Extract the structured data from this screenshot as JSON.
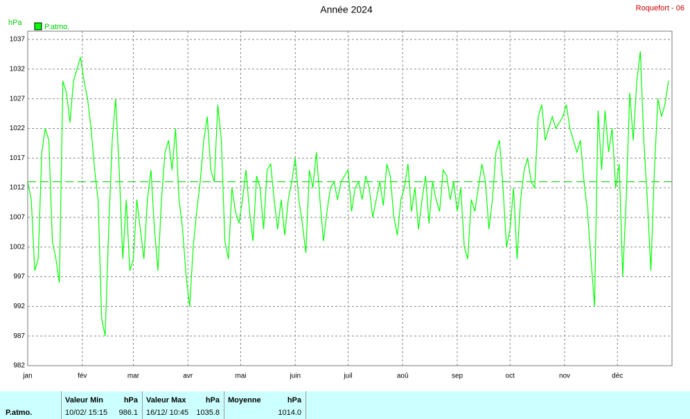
{
  "chart_data": {
    "type": "line",
    "title": "Année 2024",
    "station": "Roquefort - 06",
    "ylabel": "hPa",
    "xlim": [
      0,
      366
    ],
    "ylim": [
      982,
      1038.4
    ],
    "yticks": [
      982,
      987,
      992,
      997,
      1002,
      1007,
      1012,
      1017,
      1022,
      1027,
      1032,
      1037
    ],
    "xticks": [
      {
        "value": 0,
        "label": "jan"
      },
      {
        "value": 31,
        "label": "fév"
      },
      {
        "value": 60,
        "label": "mar"
      },
      {
        "value": 91,
        "label": "avr"
      },
      {
        "value": 121,
        "label": "mai"
      },
      {
        "value": 152,
        "label": "juin"
      },
      {
        "value": 182,
        "label": "juil"
      },
      {
        "value": 213,
        "label": "aoû"
      },
      {
        "value": 244,
        "label": "sep"
      },
      {
        "value": 274,
        "label": "oct"
      },
      {
        "value": 305,
        "label": "nov"
      },
      {
        "value": 335,
        "label": "déc"
      }
    ],
    "grid": true,
    "mean_line": 1013,
    "series": [
      {
        "name": "P.atmo.",
        "color": "#00ff00",
        "x": [
          0,
          2,
          4,
          6,
          8,
          10,
          12,
          14,
          16,
          18,
          20,
          22,
          24,
          26,
          28,
          30,
          32,
          34,
          36,
          38,
          40,
          42,
          44,
          46,
          48,
          50,
          52,
          54,
          56,
          58,
          60,
          62,
          64,
          66,
          68,
          70,
          72,
          74,
          76,
          78,
          80,
          82,
          84,
          86,
          88,
          90,
          92,
          94,
          96,
          98,
          100,
          102,
          104,
          106,
          108,
          110,
          112,
          114,
          116,
          118,
          120,
          122,
          124,
          126,
          128,
          130,
          132,
          134,
          136,
          138,
          140,
          142,
          144,
          146,
          148,
          150,
          152,
          154,
          156,
          158,
          160,
          162,
          164,
          166,
          168,
          170,
          172,
          174,
          176,
          178,
          180,
          182,
          184,
          186,
          188,
          190,
          192,
          194,
          196,
          198,
          200,
          202,
          204,
          206,
          208,
          210,
          212,
          214,
          216,
          218,
          220,
          222,
          224,
          226,
          228,
          230,
          232,
          234,
          236,
          238,
          240,
          242,
          244,
          246,
          248,
          250,
          252,
          254,
          256,
          258,
          260,
          262,
          264,
          266,
          268,
          270,
          272,
          274,
          276,
          278,
          280,
          282,
          284,
          286,
          288,
          290,
          292,
          294,
          296,
          298,
          300,
          302,
          304,
          306,
          308,
          310,
          312,
          314,
          316,
          318,
          320,
          322,
          324,
          326,
          328,
          330,
          332,
          334,
          336,
          338,
          340,
          342,
          344,
          346,
          348,
          350,
          352,
          354,
          356,
          358,
          360,
          362,
          364
        ],
        "values": [
          1013,
          1010,
          998,
          1000,
          1018,
          1022,
          1020,
          1003,
          1000,
          996,
          1030,
          1028,
          1023,
          1030,
          1032,
          1034,
          1030,
          1027,
          1022,
          1015,
          1010,
          990,
          987,
          1005,
          1020,
          1027,
          1015,
          1000,
          1010,
          998,
          1000,
          1010,
          1005,
          1000,
          1010,
          1015,
          1005,
          998,
          1010,
          1018,
          1020,
          1015,
          1022,
          1010,
          1005,
          997,
          992,
          1002,
          1008,
          1013,
          1020,
          1024,
          1015,
          1013,
          1026,
          1020,
          1003,
          1000,
          1012,
          1008,
          1006,
          1010,
          1015,
          1008,
          1003,
          1014,
          1012,
          1005,
          1015,
          1016,
          1010,
          1005,
          1010,
          1004,
          1010,
          1013,
          1017,
          1010,
          1006,
          1001,
          1015,
          1012,
          1018,
          1010,
          1003,
          1008,
          1012,
          1013,
          1010,
          1013,
          1014,
          1015,
          1008,
          1012,
          1013,
          1010,
          1014,
          1012,
          1007,
          1010,
          1013,
          1009,
          1016,
          1014,
          1007,
          1004,
          1010,
          1012,
          1016,
          1008,
          1012,
          1005,
          1010,
          1014,
          1006,
          1013,
          1010,
          1008,
          1015,
          1014,
          1010,
          1013,
          1008,
          1012,
          1002,
          1000,
          1010,
          1008,
          1012,
          1016,
          1013,
          1005,
          1010,
          1018,
          1020,
          1012,
          1002,
          1005,
          1012,
          1000,
          1010,
          1015,
          1017,
          1013,
          1012,
          1024,
          1026,
          1020,
          1022,
          1024,
          1022,
          1023,
          1024,
          1026,
          1022,
          1020,
          1018,
          1020,
          1013,
          1008,
          1000,
          992,
          1025,
          1015,
          1025,
          1018,
          1022,
          1012,
          1016,
          997,
          1010,
          1028,
          1020,
          1030,
          1035,
          1020,
          1010,
          998,
          1015,
          1027,
          1024,
          1026,
          1030
        ]
      }
    ]
  },
  "summary": {
    "row_label": "P.atmo.",
    "columns": [
      {
        "header": "Valeur Min",
        "unit": "hPa",
        "date": "10/02/ 15:15",
        "value": "986.1"
      },
      {
        "header": "Valeur Max",
        "unit": "hPa",
        "date": "16/12/ 10:45",
        "value": "1035.8"
      },
      {
        "header": "Moyenne",
        "unit": "hPa",
        "value": "1014.0"
      }
    ]
  }
}
